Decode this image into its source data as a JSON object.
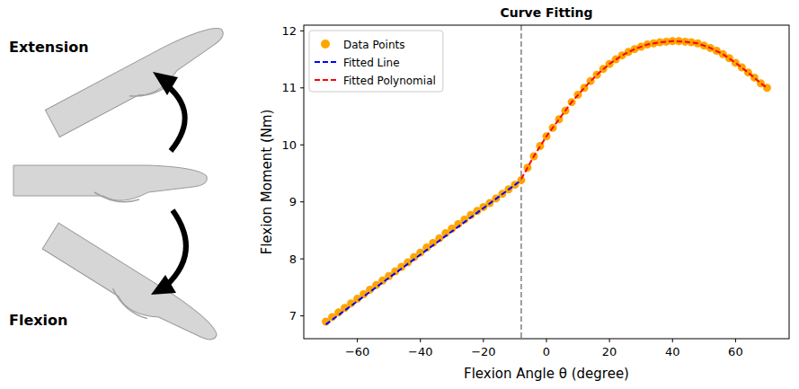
{
  "illustration": {
    "top_label": "Extension",
    "bottom_label": "Flexion"
  },
  "chart_data": {
    "type": "scatter",
    "title": "Curve Fitting",
    "x_label": "Flexion Angle θ (degree)",
    "y_label": "Flexion Moment (Nm)",
    "xlim": [
      -77,
      77
    ],
    "ylim": [
      6.6,
      12.1
    ],
    "xticks": [
      {
        "value": -60,
        "label": "−60"
      },
      {
        "value": -40,
        "label": "−40"
      },
      {
        "value": -20,
        "label": "−20"
      },
      0,
      20,
      40,
      60
    ],
    "yticks": [
      7,
      8,
      9,
      10,
      11,
      12
    ],
    "breakpoint": -8,
    "legend": "upper left",
    "grid": false,
    "series": [
      {
        "name": "Data Points",
        "type": "scatter",
        "color": "#ffa500",
        "marker": "circle",
        "x": [
          -70,
          -68,
          -66,
          -64,
          -62,
          -60,
          -58,
          -56,
          -54,
          -52,
          -50,
          -48,
          -46,
          -44,
          -42,
          -40,
          -38,
          -36,
          -34,
          -32,
          -30,
          -28,
          -26,
          -24,
          -22,
          -20,
          -18,
          -16,
          -14,
          -12,
          -10,
          -8,
          -6,
          -4,
          -2,
          0,
          2,
          4,
          6,
          8,
          10,
          12,
          14,
          16,
          18,
          20,
          22,
          24,
          26,
          28,
          30,
          32,
          34,
          36,
          38,
          40,
          42,
          44,
          46,
          48,
          50,
          52,
          54,
          56,
          58,
          60,
          62,
          64,
          66,
          68,
          70
        ],
        "values": [
          6.9,
          6.98,
          7.06,
          7.14,
          7.22,
          7.3,
          7.38,
          7.46,
          7.54,
          7.62,
          7.7,
          7.78,
          7.86,
          7.94,
          8.03,
          8.11,
          8.2,
          8.28,
          8.36,
          8.45,
          8.53,
          8.61,
          8.69,
          8.77,
          8.84,
          8.91,
          8.98,
          9.06,
          9.14,
          9.22,
          9.3,
          9.38,
          9.6,
          9.8,
          9.98,
          10.15,
          10.3,
          10.45,
          10.6,
          10.75,
          10.88,
          11.0,
          11.12,
          11.23,
          11.33,
          11.42,
          11.5,
          11.57,
          11.63,
          11.68,
          11.72,
          11.76,
          11.78,
          11.8,
          11.81,
          11.82,
          11.82,
          11.81,
          11.8,
          11.78,
          11.74,
          11.7,
          11.65,
          11.59,
          11.52,
          11.44,
          11.36,
          11.27,
          11.18,
          11.08,
          11.0
        ]
      },
      {
        "name": "Fitted Line",
        "type": "line",
        "color": "#0000ff",
        "line_style": "dashed",
        "x": [
          -70,
          -8
        ],
        "values": [
          6.85,
          9.38
        ]
      },
      {
        "name": "Fitted Polynomial",
        "type": "line",
        "color": "#ff0000",
        "line_style": "dashed",
        "x": [
          -8,
          -4,
          0,
          4,
          8,
          12,
          16,
          20,
          24,
          28,
          32,
          36,
          40,
          44,
          48,
          52,
          56,
          60,
          64,
          68,
          70
        ],
        "values": [
          9.4,
          9.8,
          10.15,
          10.45,
          10.75,
          11.0,
          11.23,
          11.42,
          11.57,
          11.68,
          11.76,
          11.8,
          11.82,
          11.81,
          11.78,
          11.7,
          11.59,
          11.44,
          11.27,
          11.08,
          11.0
        ]
      }
    ]
  }
}
